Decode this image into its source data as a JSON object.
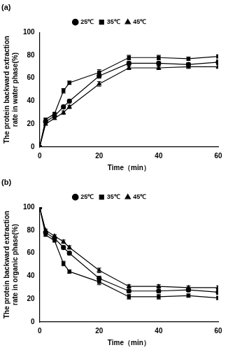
{
  "chart_data": [
    {
      "type": "line",
      "title": "(a)",
      "x_label": "Time（min）",
      "y_label": "The protein backward extraction rate in water phase(%)",
      "x": [
        0,
        2,
        5,
        8,
        10,
        20,
        30,
        40,
        50,
        60
      ],
      "xlim": [
        0,
        60
      ],
      "xticks": [
        0,
        20,
        40,
        60
      ],
      "ylim": [
        0,
        100
      ],
      "yticks": [
        0,
        20,
        40,
        60,
        80,
        100
      ],
      "grid": false,
      "legend": "top",
      "series": [
        {
          "name": "25℃",
          "color": "#000000",
          "marker": "circle",
          "line_style": "solid",
          "values": [
            0,
            22,
            27,
            35,
            40,
            62,
            73,
            73,
            72,
            74
          ],
          "errors": [
            0,
            1,
            1,
            1.5,
            1.5,
            2,
            1.5,
            1.5,
            1.5,
            2
          ]
        },
        {
          "name": "35℃",
          "color": "#000000",
          "marker": "square",
          "line_style": "solid",
          "values": [
            0,
            24,
            29,
            49,
            56,
            65,
            78,
            78,
            77,
            79
          ],
          "errors": [
            0,
            1,
            1,
            2,
            1.5,
            2.5,
            2,
            2,
            1.5,
            1.5
          ]
        },
        {
          "name": "45℃",
          "color": "#000000",
          "marker": "triangle",
          "line_style": "solid",
          "values": [
            0,
            20,
            25,
            30,
            35,
            55,
            69,
            69,
            70,
            70
          ],
          "errors": [
            0,
            1,
            1,
            1.5,
            1.5,
            2,
            1.5,
            1.5,
            1.5,
            1.5
          ]
        }
      ]
    },
    {
      "type": "line",
      "title": "(b)",
      "x_label": "Time（min）",
      "y_label": "The protein backward extraction rate in organic phase(%)",
      "x": [
        0,
        2,
        5,
        8,
        10,
        20,
        30,
        40,
        50,
        60
      ],
      "xlim": [
        0,
        60
      ],
      "xticks": [
        0,
        20,
        40,
        60
      ],
      "ylim": [
        0,
        100
      ],
      "yticks": [
        0,
        20,
        40,
        60,
        80,
        100
      ],
      "grid": false,
      "legend": "top",
      "series": [
        {
          "name": "25℃",
          "color": "#000000",
          "marker": "circle",
          "line_style": "solid",
          "values": [
            100,
            78,
            73,
            65,
            60,
            38,
            27,
            27,
            28,
            26
          ],
          "errors": [
            0,
            1,
            1,
            1.5,
            1.5,
            2,
            1.5,
            1.5,
            1.5,
            2
          ]
        },
        {
          "name": "35℃",
          "color": "#000000",
          "marker": "square",
          "line_style": "solid",
          "values": [
            100,
            76,
            71,
            51,
            44,
            35,
            22,
            22,
            23,
            21
          ],
          "errors": [
            0,
            1,
            1,
            2,
            1.5,
            2.5,
            2,
            2,
            1.5,
            1.5
          ]
        },
        {
          "name": "45℃",
          "color": "#000000",
          "marker": "triangle",
          "line_style": "solid",
          "values": [
            100,
            80,
            75,
            70,
            65,
            45,
            31,
            31,
            30,
            30
          ],
          "errors": [
            0,
            1,
            1,
            1.5,
            1.5,
            2,
            1.5,
            1.5,
            1.5,
            1.5
          ]
        }
      ]
    }
  ]
}
